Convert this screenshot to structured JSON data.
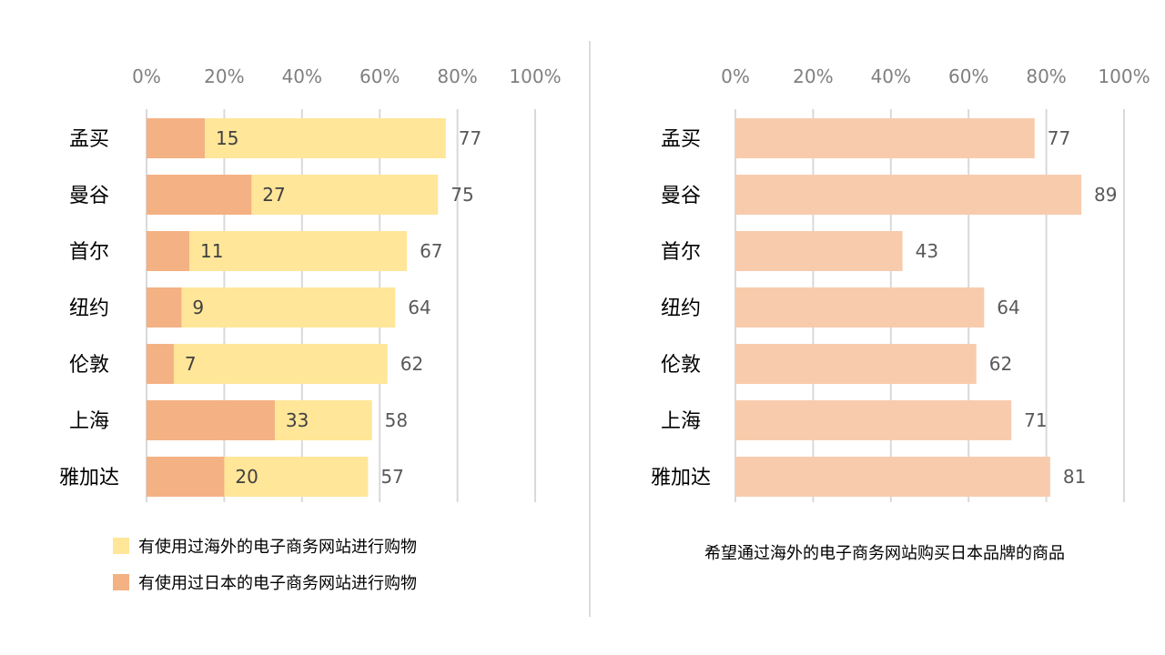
{
  "chart_data": [
    {
      "type": "bar",
      "orientation": "horizontal",
      "stacking": "overlapped",
      "categories": [
        "孟买",
        "曼谷",
        "首尔",
        "纽约",
        "伦敦",
        "上海",
        "雅加达"
      ],
      "series": [
        {
          "name": "有使用过海外的电子商务网站进行购物",
          "values": [
            77,
            75,
            67,
            64,
            62,
            58,
            57
          ],
          "color": "#FFE699"
        },
        {
          "name": "有使用过日本的电子商务网站进行购物",
          "values": [
            15,
            27,
            11,
            9,
            7,
            33,
            20
          ],
          "color": "#F4B183"
        }
      ],
      "xticks": [
        "0%",
        "20%",
        "40%",
        "60%",
        "80%",
        "100%"
      ],
      "xlim": [
        0,
        100
      ],
      "axis_position": "top",
      "grid": true,
      "legend": "bottom"
    },
    {
      "type": "bar",
      "orientation": "horizontal",
      "categories": [
        "孟买",
        "曼谷",
        "首尔",
        "纽约",
        "伦敦",
        "上海",
        "雅加达"
      ],
      "series": [
        {
          "name": "希望通过海外的电子商务网站购买日本品牌的商品",
          "values": [
            77,
            89,
            43,
            64,
            62,
            71,
            81
          ],
          "color": "#F8CBAD"
        }
      ],
      "xticks": [
        "0%",
        "20%",
        "40%",
        "60%",
        "80%",
        "100%"
      ],
      "xlim": [
        0,
        100
      ],
      "axis_position": "top",
      "grid": true,
      "legend": "bottom"
    }
  ],
  "colors": {
    "grid": "#D9D9D9",
    "divider": "#D0D0D0",
    "tick_text": "#7F7F7F"
  }
}
